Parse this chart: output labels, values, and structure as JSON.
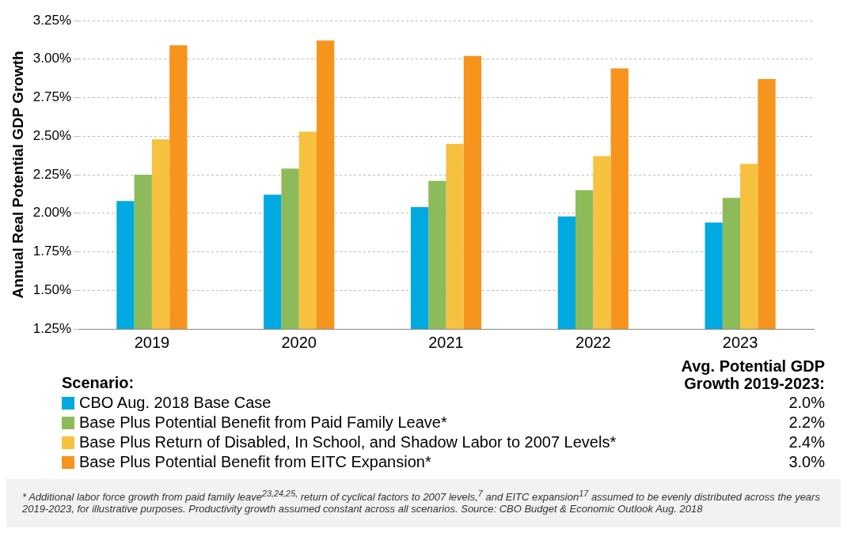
{
  "chart_data": {
    "type": "bar",
    "ylabel": "Annual Real Potential GDP Growth",
    "legend_title": "Scenario:",
    "categories": [
      "2019",
      "2020",
      "2021",
      "2022",
      "2023"
    ],
    "series": [
      {
        "name": "CBO Aug. 2018 Base Case",
        "color": "#00a9e0",
        "values": [
          2.08,
          2.12,
          2.04,
          1.98,
          1.94
        ]
      },
      {
        "name": "Base Plus Potential Benefit from Paid Family Leave*",
        "color": "#8dbb5a",
        "values": [
          2.25,
          2.29,
          2.21,
          2.15,
          2.1
        ]
      },
      {
        "name": "Base Plus Return of Disabled, In School, and Shadow Labor to 2007 Levels*",
        "color": "#f6c13e",
        "values": [
          2.48,
          2.53,
          2.45,
          2.37,
          2.32
        ]
      },
      {
        "name": "Base Plus Potential Benefit from EITC Expansion*",
        "color": "#f7941d",
        "values": [
          3.09,
          3.12,
          3.02,
          2.94,
          2.87
        ]
      }
    ],
    "ylim": [
      1.25,
      3.25
    ],
    "yticks": [
      {
        "value": 1.25,
        "label": "1.25%"
      },
      {
        "value": 1.5,
        "label": "1.50%"
      },
      {
        "value": 1.75,
        "label": "1.75%"
      },
      {
        "value": 2,
        "label": "2.00%"
      },
      {
        "value": 2.25,
        "label": "2.25%"
      },
      {
        "value": 2.5,
        "label": "2.50%"
      },
      {
        "value": 2.75,
        "label": "2.75%"
      },
      {
        "value": 3,
        "label": "3.00%"
      },
      {
        "value": 3.25,
        "label": "3.25%"
      }
    ],
    "grid": "y",
    "legend": "bottom",
    "annotations": [
      "Avg. Potential GDP Growth 2019-2023:",
      "2.0%",
      "2.2%",
      "2.4%",
      "3.0%",
      "* Additional labor force growth from paid family leave$^{23,24,25,}$ return of cyclical factors to 2007 levels,$^{7}$ and EITC expansion$^{17}$ assumed to be evenly distributed across the years 2019-2023, for illustrative purposes. Productivity growth assumed constant across all scenarios. Source: CBO Budget & Economic Outlook Aug. 2018"
    ]
  }
}
